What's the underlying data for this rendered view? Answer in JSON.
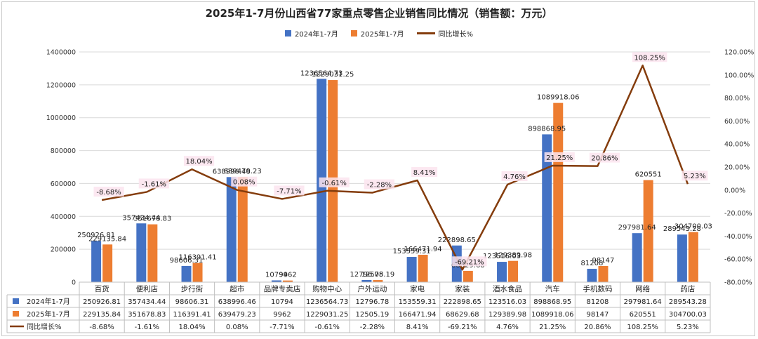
{
  "chart_data": {
    "type": "bar",
    "title": "2025年1-7月份山西省77家重点零售企业销售同比情况（销售额：万元）",
    "categories": [
      "百货",
      "便利店",
      "步行街",
      "超市",
      "品牌专卖店",
      "购物中心",
      "户外运动",
      "家电",
      "家装",
      "酒水食品",
      "汽车",
      "手机数码",
      "网络",
      "药店"
    ],
    "series": [
      {
        "name": "2024年1-7月",
        "type": "bar",
        "axis": "left",
        "color": "#4472c4",
        "values": [
          250926.81,
          357434.44,
          98606.31,
          638996.46,
          10794,
          1236564.73,
          12796.78,
          153559.31,
          222898.65,
          123516.03,
          898868.95,
          81208,
          297981.64,
          289543.28
        ],
        "labels": [
          "250926.81",
          "357434.44",
          "98606.31",
          "638996.46",
          "10794",
          "1236564.73",
          "12796.78",
          "153559.31",
          "222898.65",
          "123516.03",
          "898868.95",
          "81208",
          "297981.64",
          "289543.28"
        ]
      },
      {
        "name": "2025年1-7月",
        "type": "bar",
        "axis": "left",
        "color": "#ed7d31",
        "values": [
          229135.84,
          351678.83,
          116391.41,
          639479.23,
          9962,
          1229031.25,
          12505.19,
          166471.94,
          68629.68,
          129389.98,
          1089918.06,
          98147,
          620551,
          304700.03
        ],
        "labels": [
          "229135.84",
          "351678.83",
          "116391.41",
          "639479.23",
          "9962",
          "1229031.25",
          "12505.19",
          "166471.94",
          "68629.68",
          "129389.98",
          "1089918.06",
          "98147",
          "620551",
          "304700.03"
        ]
      },
      {
        "name": "同比增长%",
        "type": "line",
        "axis": "right",
        "color": "#843c0c",
        "values": [
          -8.68,
          -1.61,
          18.04,
          0.08,
          -7.71,
          -0.61,
          -2.28,
          8.41,
          -69.21,
          4.76,
          21.25,
          20.86,
          108.25,
          5.23
        ],
        "labels": [
          "-8.68%",
          "-1.61%",
          "18.04%",
          "0.08%",
          "-7.71%",
          "-0.61%",
          "-2.28%",
          "8.41%",
          "-69.21%",
          "4.76%",
          "21.25%",
          "20.86%",
          "108.25%",
          "5.23%"
        ]
      }
    ],
    "ylim": [
      0,
      1400000
    ],
    "yticks": [
      "0",
      "200000",
      "400000",
      "600000",
      "800000",
      "1000000",
      "1200000",
      "1400000"
    ],
    "y2lim": [
      -80,
      120
    ],
    "y2ticks": [
      "-80.00%",
      "-60.00%",
      "-40.00%",
      "-20.00%",
      "0.00%",
      "20.00%",
      "40.00%",
      "60.00%",
      "80.00%",
      "100.00%",
      "120.00%"
    ],
    "grid": true,
    "legend": "top-center",
    "data_table": true
  }
}
